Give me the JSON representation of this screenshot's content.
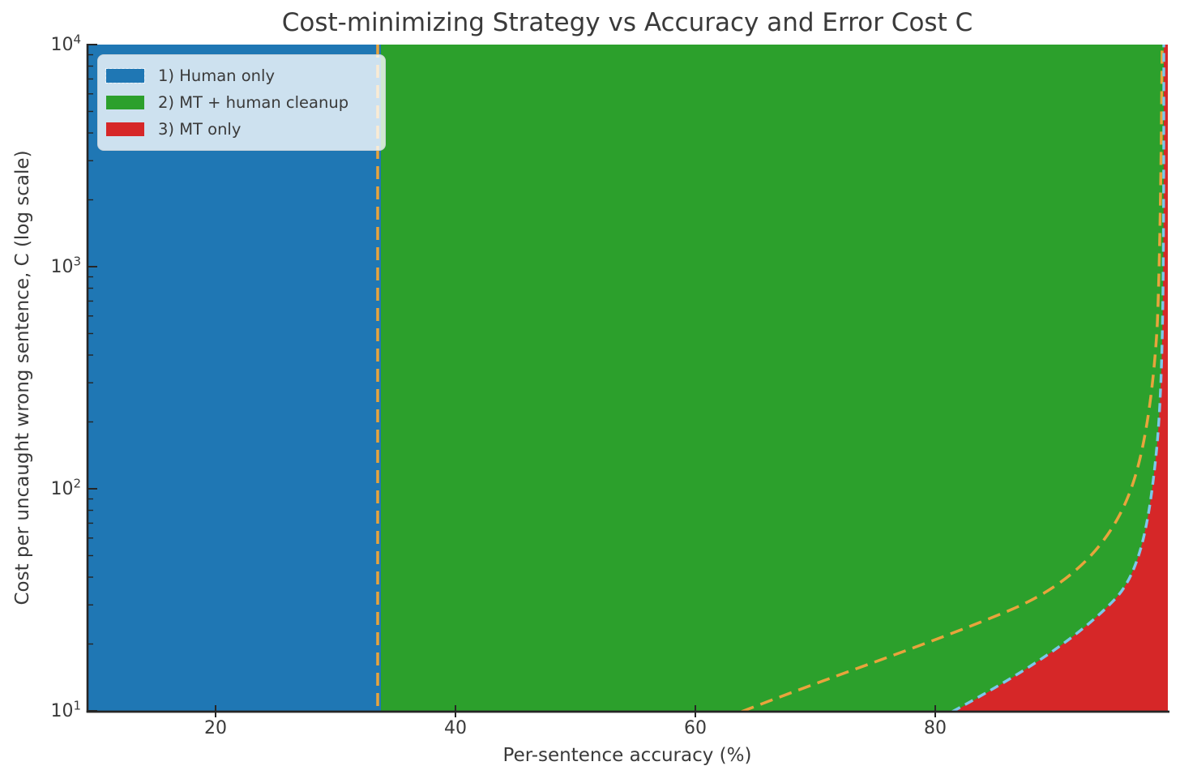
{
  "chart_data": {
    "type": "area",
    "title": "Cost-minimizing Strategy vs Accuracy and Error Cost C",
    "xlabel": "Per-sentence accuracy (%)",
    "ylabel": "Cost per uncaught wrong sentence, C (log scale)",
    "x_scale": "linear",
    "y_scale": "log",
    "x_range": [
      9.3,
      99.5
    ],
    "y_range": [
      10,
      10000
    ],
    "x_tick_labels": [
      "20",
      "40",
      "60",
      "80"
    ],
    "y_tick_labels": [
      {
        "mantissa": "10",
        "exponent": "4"
      },
      {
        "mantissa": "10",
        "exponent": "3"
      },
      {
        "mantissa": "10",
        "exponent": "2"
      },
      {
        "mantissa": "10",
        "exponent": "1"
      }
    ],
    "grid": false,
    "legend": {
      "position": "upper left",
      "entries": [
        {
          "label": "1) Human only",
          "color": "#1f77b4"
        },
        {
          "label": "2) MT + human cleanup",
          "color": "#2ca02c"
        },
        {
          "label": "3) MT only",
          "color": "#d62728"
        }
      ]
    },
    "regions": [
      {
        "name": "human-only",
        "label": "1) Human only",
        "color": "#1f77b4",
        "extent": "accuracy below ~33.3% for all C"
      },
      {
        "name": "mt-plus-human-cleanup",
        "label": "2) MT + human cleanup",
        "color": "#2ca02c",
        "extent": "accuracy above ~33.3%, left of MT-only boundary curve"
      },
      {
        "name": "mt-only",
        "label": "3) MT only",
        "color": "#d62728",
        "extent": "bottom-right: high accuracy and low C, right of boundary curve"
      }
    ],
    "boundaries": [
      {
        "name": "human-vs-cleanup",
        "style": "dashed",
        "color": "#e8a43c",
        "shape": "vertical line",
        "accuracy_percent": 33.3
      },
      {
        "name": "human-vs-mt-only",
        "style": "dashed",
        "color": "#e8a43c",
        "shape": "curve",
        "points_accuracy_C": [
          [
            63.5,
            10
          ],
          [
            80,
            18
          ],
          [
            90,
            37
          ],
          [
            95,
            73
          ],
          [
            99,
            365
          ],
          [
            99.9,
            3650
          ]
        ]
      },
      {
        "name": "cleanup-vs-mt-only",
        "style": "dashed",
        "color": "#7bc8ea",
        "shape": "curve",
        "points_accuracy_C": [
          [
            81.5,
            10
          ],
          [
            90.5,
            20
          ],
          [
            96,
            50
          ],
          [
            98,
            100
          ],
          [
            99.6,
            500
          ],
          [
            99.95,
            4000
          ]
        ]
      }
    ]
  }
}
